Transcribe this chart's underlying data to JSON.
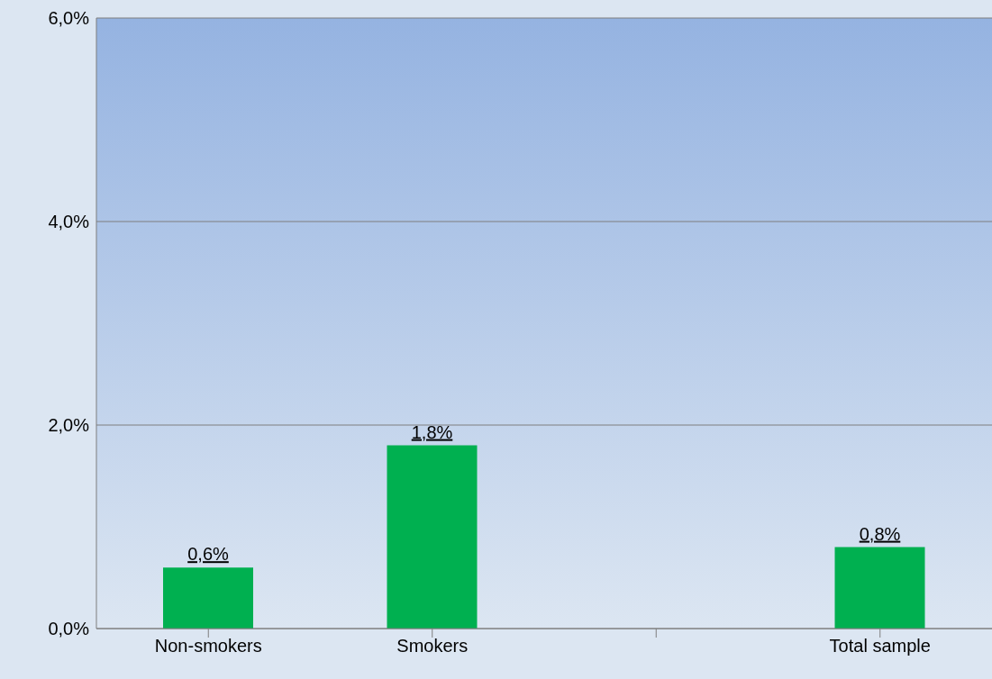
{
  "chart_data": {
    "type": "bar",
    "categories": [
      "Non-smokers",
      "Smokers",
      null,
      "Total sample"
    ],
    "values": [
      0.6,
      1.8,
      null,
      0.8
    ],
    "color": "#00b050",
    "value_labels": [
      "0,6%",
      "1,8%",
      null,
      "0,8%"
    ],
    "ylim": [
      0,
      6
    ],
    "yticks": [
      {
        "value": 0,
        "label": "0,0%"
      },
      {
        "value": 2,
        "label": "2,0%"
      },
      {
        "value": 4,
        "label": "4,0%"
      },
      {
        "value": 6,
        "label": "6,0%"
      }
    ],
    "grid": "y",
    "legend": false
  }
}
